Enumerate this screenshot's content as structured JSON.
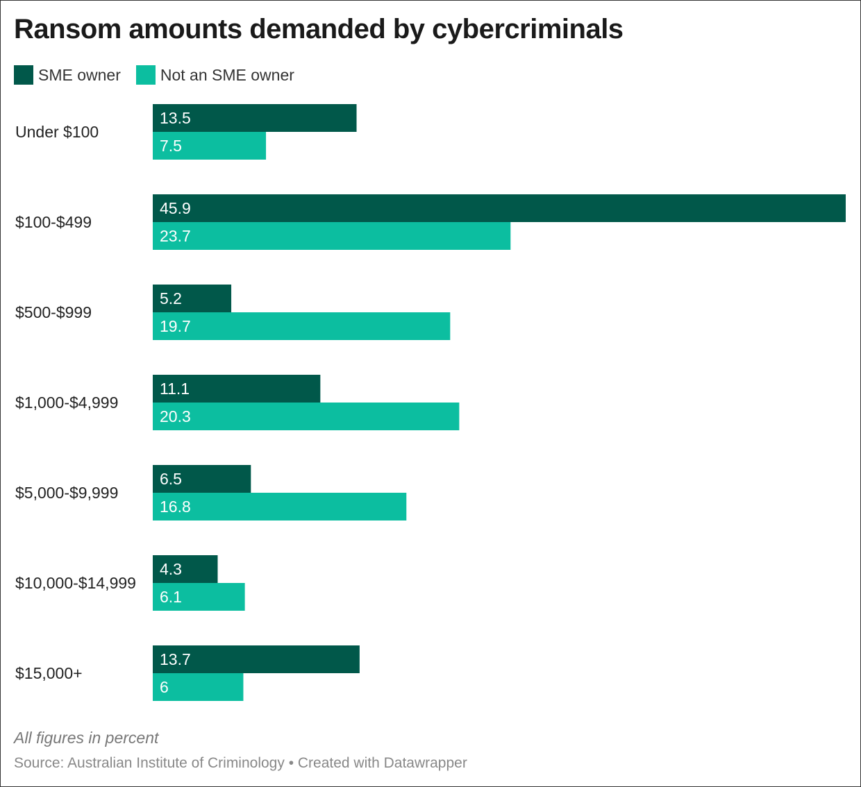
{
  "title": "Ransom amounts demanded by cybercriminals",
  "legend": [
    {
      "label": "SME owner",
      "color": "#01584a"
    },
    {
      "label": "Not an SME owner",
      "color": "#0cbea0"
    }
  ],
  "chart_data": {
    "type": "bar",
    "orientation": "horizontal",
    "title": "Ransom amounts demanded by cybercriminals",
    "categories": [
      "Under $100",
      "$100-$499",
      "$500-$999",
      "$1,000-$4,999",
      "$5,000-$9,999",
      "$10,000-$14,999",
      "$15,000+"
    ],
    "series": [
      {
        "name": "SME owner",
        "values": [
          13.5,
          45.9,
          5.2,
          11.1,
          6.5,
          4.3,
          13.7
        ]
      },
      {
        "name": "Not an SME owner",
        "values": [
          7.5,
          23.7,
          19.7,
          20.3,
          16.8,
          6.1,
          6
        ]
      }
    ],
    "xlim": [
      0,
      45.9
    ],
    "xlabel": "",
    "ylabel": "",
    "grid": false,
    "legend_position": "top-left"
  },
  "note": "All figures in percent",
  "source": "Source: Australian Institute of Criminology • Created with Datawrapper"
}
